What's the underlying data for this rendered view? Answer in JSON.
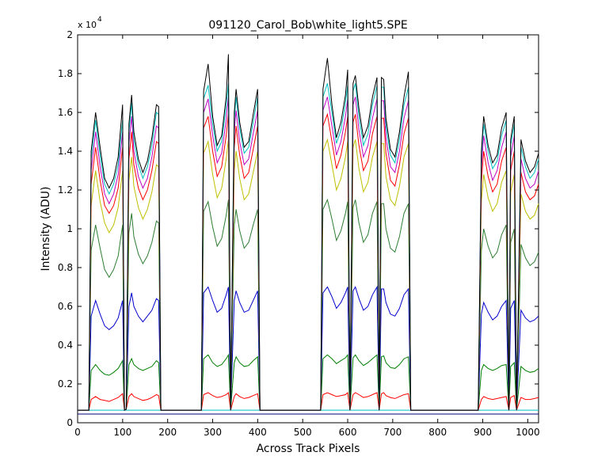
{
  "chart_data": {
    "type": "line",
    "title": "091120_Carol_Bob\\white_light5.SPE",
    "xlabel": "Across Track Pixels",
    "ylabel": "Intensity (ADU)",
    "y_exponent_base": "x 10",
    "y_exponent_power": "4",
    "xlim": [
      0,
      1024
    ],
    "ylim": [
      0,
      20000
    ],
    "xticks": [
      0,
      100,
      200,
      300,
      400,
      500,
      600,
      700,
      800,
      900,
      1000
    ],
    "yticks": [
      0,
      2000,
      4000,
      6000,
      8000,
      10000,
      12000,
      14000,
      16000,
      18000,
      20000
    ],
    "yticklabels": [
      "0",
      "0.2",
      "0.4",
      "0.6",
      "0.8",
      "1",
      "1.2",
      "1.4",
      "1.6",
      "1.8",
      "2"
    ],
    "grid": false,
    "legend": "none",
    "x": [
      0,
      25,
      30,
      40,
      50,
      60,
      70,
      80,
      90,
      100,
      104,
      108,
      114,
      120,
      125,
      135,
      145,
      155,
      165,
      175,
      180,
      185,
      188,
      200,
      265,
      275,
      280,
      290,
      300,
      310,
      320,
      330,
      335,
      340,
      348,
      352,
      360,
      370,
      380,
      390,
      400,
      405,
      410,
      415,
      420,
      530,
      540,
      545,
      555,
      565,
      575,
      585,
      595,
      600,
      605,
      612,
      617,
      625,
      635,
      645,
      655,
      665,
      670,
      675,
      680,
      685,
      695,
      705,
      715,
      725,
      735,
      740,
      745,
      890,
      897,
      902,
      912,
      922,
      932,
      942,
      952,
      958,
      962,
      970,
      975,
      985,
      995,
      1005,
      1015,
      1024
    ],
    "series": [
      {
        "color": "#00007f",
        "values": [
          450,
          450,
          450,
          450,
          450,
          450,
          450,
          450,
          450,
          450,
          450,
          450,
          450,
          450,
          450,
          450,
          450,
          450,
          450,
          450,
          450,
          450,
          450,
          450,
          450,
          450,
          450,
          450,
          450,
          450,
          450,
          450,
          450,
          450,
          450,
          450,
          450,
          450,
          450,
          450,
          450,
          450,
          450,
          450,
          450,
          450,
          450,
          450,
          450,
          450,
          450,
          450,
          450,
          450,
          450,
          450,
          450,
          450,
          450,
          450,
          450,
          450,
          450,
          450,
          450,
          450,
          450,
          450,
          450,
          450,
          450,
          450,
          450,
          450,
          450,
          450,
          450,
          450,
          450,
          450,
          450,
          450,
          450,
          450,
          450,
          450,
          450,
          450,
          450,
          450
        ]
      },
      {
        "color": "#00bfbf",
        "values": [
          650,
          650,
          650,
          650,
          650,
          650,
          650,
          650,
          650,
          650,
          650,
          650,
          650,
          650,
          650,
          650,
          650,
          650,
          650,
          650,
          650,
          650,
          650,
          650,
          650,
          650,
          650,
          650,
          650,
          650,
          650,
          650,
          650,
          650,
          650,
          650,
          650,
          650,
          650,
          650,
          650,
          650,
          650,
          650,
          650,
          650,
          650,
          650,
          650,
          650,
          650,
          650,
          650,
          650,
          650,
          650,
          650,
          650,
          650,
          650,
          650,
          650,
          650,
          650,
          650,
          650,
          650,
          650,
          650,
          650,
          650,
          650,
          650,
          650,
          650,
          650,
          650,
          650,
          650,
          650,
          650,
          650,
          650,
          650,
          650,
          650,
          650,
          650,
          650,
          650
        ]
      },
      {
        "color": "#ff0000",
        "values": [
          650,
          650,
          1200,
          1350,
          1200,
          1150,
          1100,
          1200,
          1300,
          1500,
          650,
          700,
          1350,
          1500,
          1350,
          1250,
          1150,
          1200,
          1300,
          1450,
          1400,
          650,
          650,
          650,
          650,
          650,
          1450,
          1550,
          1400,
          1300,
          1350,
          1450,
          1550,
          650,
          1350,
          1500,
          1350,
          1250,
          1300,
          1400,
          1500,
          650,
          650,
          650,
          650,
          650,
          650,
          1450,
          1550,
          1450,
          1350,
          1400,
          1450,
          1550,
          650,
          1450,
          1550,
          1450,
          1300,
          1350,
          1450,
          1550,
          650,
          1500,
          1550,
          1400,
          1300,
          1250,
          1350,
          1450,
          1500,
          650,
          650,
          650,
          1200,
          1350,
          1250,
          1200,
          1250,
          1300,
          1350,
          650,
          1300,
          1400,
          650,
          1300,
          1200,
          1200,
          1250,
          1300
        ]
      },
      {
        "color": "#007f00",
        "values": [
          650,
          650,
          2700,
          3000,
          2700,
          2500,
          2450,
          2600,
          2800,
          3200,
          650,
          700,
          3000,
          3300,
          3000,
          2800,
          2700,
          2800,
          2900,
          3200,
          3100,
          650,
          650,
          650,
          650,
          650,
          3300,
          3500,
          3100,
          2900,
          3000,
          3300,
          3500,
          650,
          3100,
          3400,
          3100,
          2900,
          2950,
          3200,
          3400,
          650,
          650,
          650,
          650,
          650,
          650,
          3300,
          3500,
          3300,
          3050,
          3200,
          3350,
          3500,
          650,
          3350,
          3500,
          3200,
          2950,
          3100,
          3300,
          3500,
          650,
          3400,
          3450,
          3100,
          2850,
          2800,
          3000,
          3300,
          3400,
          650,
          650,
          650,
          2700,
          3000,
          2800,
          2700,
          2800,
          2950,
          3000,
          650,
          2900,
          3100,
          650,
          2900,
          2700,
          2600,
          2650,
          2800
        ]
      },
      {
        "color": "#0000cc",
        "values": [
          650,
          650,
          5500,
          6300,
          5600,
          5000,
          4800,
          5000,
          5400,
          6300,
          650,
          700,
          6000,
          6700,
          6000,
          5500,
          5200,
          5500,
          5800,
          6400,
          6300,
          650,
          650,
          650,
          650,
          650,
          6700,
          7000,
          6300,
          5700,
          5900,
          6600,
          7000,
          650,
          6300,
          6800,
          6200,
          5700,
          5800,
          6300,
          6800,
          650,
          650,
          650,
          650,
          650,
          650,
          6700,
          7000,
          6500,
          5900,
          6200,
          6700,
          7000,
          650,
          6800,
          7000,
          6400,
          5800,
          6000,
          6600,
          7000,
          650,
          6900,
          6900,
          6200,
          5600,
          5500,
          5900,
          6600,
          6900,
          650,
          650,
          650,
          5600,
          6200,
          5700,
          5300,
          5500,
          6000,
          6300,
          650,
          5900,
          6300,
          650,
          5800,
          5400,
          5200,
          5300,
          5500
        ]
      },
      {
        "color": "#2e7d32",
        "values": [
          650,
          650,
          8900,
          10200,
          9000,
          7900,
          7500,
          7900,
          8600,
          10200,
          650,
          700,
          9800,
          10800,
          9600,
          8700,
          8200,
          8600,
          9300,
          10400,
          10300,
          650,
          650,
          650,
          650,
          650,
          10900,
          11400,
          10100,
          9100,
          9500,
          10700,
          11500,
          650,
          10200,
          11000,
          9900,
          9000,
          9300,
          10200,
          11000,
          650,
          650,
          650,
          650,
          650,
          650,
          11000,
          11500,
          10500,
          9400,
          9900,
          10800,
          11400,
          650,
          11100,
          11500,
          10300,
          9300,
          9700,
          10800,
          11400,
          650,
          11300,
          11300,
          10000,
          9000,
          8800,
          9600,
          10800,
          11300,
          650,
          650,
          650,
          8900,
          10000,
          9100,
          8500,
          8800,
          9700,
          10200,
          650,
          9300,
          10000,
          650,
          9200,
          8500,
          8100,
          8300,
          8800
        ]
      },
      {
        "color": "#bfbf00",
        "values": [
          650,
          650,
          11200,
          13000,
          11400,
          10300,
          9800,
          10200,
          11100,
          13000,
          650,
          700,
          12500,
          13700,
          12200,
          11100,
          10500,
          11000,
          11900,
          13300,
          13200,
          650,
          650,
          650,
          650,
          650,
          13900,
          14500,
          12800,
          11600,
          12100,
          13600,
          14600,
          650,
          13000,
          14000,
          12600,
          11500,
          11800,
          12900,
          14000,
          650,
          650,
          650,
          650,
          650,
          650,
          14000,
          14600,
          13300,
          12000,
          12600,
          13700,
          14500,
          650,
          14200,
          14600,
          13100,
          11900,
          12400,
          13700,
          14500,
          650,
          14400,
          14400,
          12700,
          11500,
          11200,
          12200,
          13700,
          14400,
          650,
          650,
          650,
          11400,
          12800,
          11600,
          10900,
          11300,
          12400,
          13000,
          650,
          11900,
          12800,
          650,
          11800,
          10900,
          10500,
          10700,
          11300
        ]
      },
      {
        "color": "#ff0000",
        "values": [
          650,
          650,
          12300,
          14200,
          12500,
          11200,
          10800,
          11200,
          12100,
          14200,
          650,
          700,
          13600,
          15000,
          13300,
          12100,
          11500,
          12000,
          13000,
          14500,
          14400,
          650,
          650,
          650,
          650,
          650,
          15200,
          15800,
          14000,
          12700,
          13200,
          14800,
          15900,
          650,
          14200,
          15300,
          13800,
          12600,
          12900,
          14100,
          15300,
          650,
          650,
          650,
          650,
          650,
          650,
          15300,
          15900,
          14500,
          13100,
          13800,
          15000,
          15800,
          650,
          15500,
          15900,
          14300,
          13000,
          13500,
          14900,
          15800,
          650,
          15700,
          15700,
          13900,
          12500,
          12200,
          13300,
          14900,
          15700,
          650,
          650,
          650,
          12400,
          14000,
          12700,
          11900,
          12300,
          13500,
          14200,
          650,
          13000,
          14000,
          650,
          12900,
          11900,
          11500,
          11700,
          12300
        ]
      },
      {
        "color": "#bf00bf",
        "values": [
          650,
          650,
          13000,
          15000,
          13200,
          11800,
          11300,
          11800,
          12800,
          15000,
          650,
          700,
          14400,
          15800,
          14000,
          12700,
          12100,
          12600,
          13700,
          15300,
          15200,
          650,
          650,
          650,
          650,
          650,
          16000,
          16700,
          14800,
          13400,
          13900,
          15600,
          16800,
          650,
          15000,
          16100,
          14500,
          13300,
          13600,
          14900,
          16100,
          650,
          650,
          650,
          650,
          650,
          650,
          16100,
          16800,
          15300,
          13800,
          14500,
          15800,
          16700,
          650,
          16400,
          16800,
          15100,
          13700,
          14300,
          15700,
          16700,
          650,
          16600,
          16600,
          14700,
          13200,
          12900,
          14000,
          15700,
          16600,
          650,
          650,
          650,
          13100,
          14800,
          13400,
          12500,
          13000,
          14200,
          15000,
          650,
          13700,
          14800,
          650,
          13600,
          12600,
          12100,
          12300,
          13000
        ]
      },
      {
        "color": "#00bfbf",
        "values": [
          650,
          650,
          13600,
          15600,
          13800,
          12300,
          11800,
          12300,
          13300,
          15600,
          650,
          700,
          15000,
          16500,
          14600,
          13300,
          12600,
          13200,
          14300,
          16000,
          15900,
          650,
          650,
          650,
          650,
          650,
          16700,
          17400,
          15400,
          14000,
          14500,
          16300,
          17500,
          650,
          15600,
          16800,
          15200,
          13900,
          14200,
          15500,
          16800,
          650,
          650,
          650,
          650,
          650,
          650,
          16800,
          17500,
          16000,
          14400,
          15100,
          16500,
          17400,
          650,
          17100,
          17500,
          15800,
          14300,
          14900,
          16400,
          17400,
          650,
          17300,
          17300,
          15300,
          13800,
          13400,
          14600,
          16400,
          17300,
          650,
          650,
          650,
          13700,
          15400,
          14000,
          13100,
          13500,
          14800,
          15600,
          650,
          14300,
          15400,
          650,
          14200,
          13200,
          12600,
          12900,
          13600
        ]
      },
      {
        "color": "#000000",
        "values": [
          650,
          650,
          14000,
          16000,
          14200,
          12600,
          12100,
          12600,
          13700,
          16400,
          650,
          700,
          15400,
          16900,
          15000,
          13600,
          12900,
          13500,
          14700,
          16400,
          16300,
          650,
          650,
          650,
          650,
          650,
          17100,
          18500,
          15800,
          14300,
          14800,
          16800,
          19000,
          650,
          16000,
          17200,
          15500,
          14200,
          14500,
          15900,
          17200,
          650,
          650,
          650,
          650,
          650,
          650,
          17200,
          18800,
          16400,
          14700,
          15500,
          16900,
          18200,
          650,
          17500,
          17900,
          16200,
          14700,
          15300,
          16800,
          17800,
          650,
          17800,
          17700,
          15700,
          14100,
          13700,
          15000,
          16800,
          18100,
          650,
          650,
          650,
          14000,
          15800,
          14300,
          13400,
          13800,
          15200,
          16000,
          650,
          14600,
          15800,
          650,
          14600,
          13500,
          12900,
          13200,
          13900
        ]
      }
    ]
  }
}
